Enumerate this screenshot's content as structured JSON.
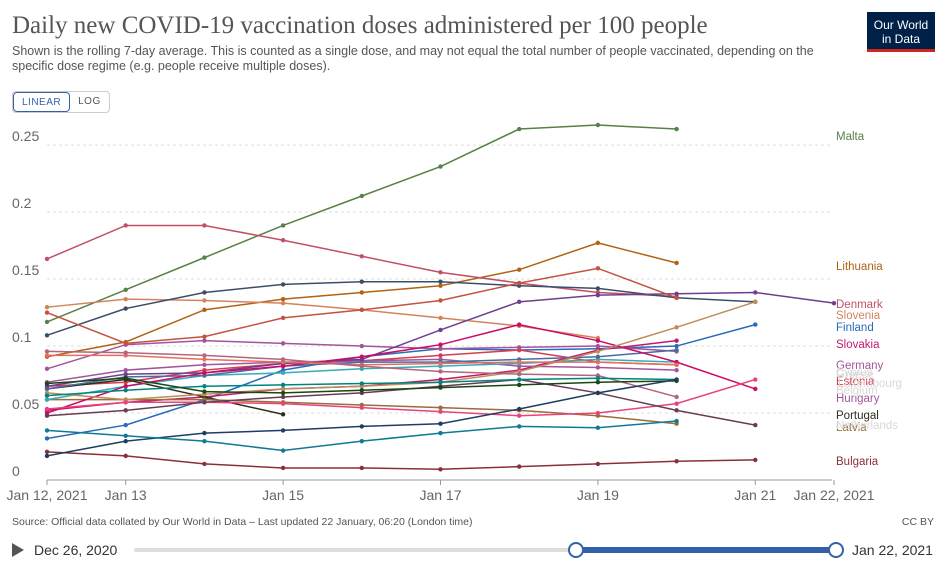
{
  "header": {
    "title": "Daily new COVID-19 vaccination doses administered per 100 people",
    "subtitle": "Shown is the rolling 7-day average. This is counted as a single dose, and may not equal the total number of people vaccinated, depending on the specific dose regime (e.g. people receive multiple doses).",
    "logo_line1": "Our World",
    "logo_line2": "in Data"
  },
  "controls": {
    "linear_label": "LINEAR",
    "log_label": "LOG",
    "active": "LINEAR"
  },
  "footer": {
    "source": "Source: Official data collated by Our World in Data – Last updated 22 January, 06:20 (London time)",
    "license": "CC BY"
  },
  "timeline": {
    "start_label": "Dec 26, 2020",
    "end_label": "Jan 22, 2021"
  },
  "chart_data": {
    "type": "line",
    "x_dates": [
      "2021-01-12",
      "2021-01-13",
      "2021-01-14",
      "2021-01-15",
      "2021-01-16",
      "2021-01-17",
      "2021-01-18",
      "2021-01-19",
      "2021-01-20",
      "2021-01-21",
      "2021-01-22"
    ],
    "x_tick_labels": [
      {
        "date": "2021-01-12",
        "label": "Jan 12, 2021"
      },
      {
        "date": "2021-01-13",
        "label": "Jan 13"
      },
      {
        "date": "2021-01-15",
        "label": "Jan 15"
      },
      {
        "date": "2021-01-17",
        "label": "Jan 17"
      },
      {
        "date": "2021-01-19",
        "label": "Jan 19"
      },
      {
        "date": "2021-01-21",
        "label": "Jan 21"
      },
      {
        "date": "2021-01-22",
        "label": "Jan 22, 2021"
      }
    ],
    "y_ticks": [
      {
        "value": 0,
        "label": "0"
      },
      {
        "value": 0.05,
        "label": "0.05"
      },
      {
        "value": 0.1,
        "label": "0.1"
      },
      {
        "value": 0.15,
        "label": "0.15"
      },
      {
        "value": 0.2,
        "label": "0.2"
      },
      {
        "value": 0.25,
        "label": "0.25"
      }
    ],
    "ylim": [
      0,
      0.265
    ],
    "grid": "horizontal dashed",
    "series": [
      {
        "name": "Malta",
        "color": "#578145",
        "labeled": true,
        "values": [
          0.118,
          0.142,
          0.166,
          0.19,
          0.212,
          0.234,
          0.262,
          0.265,
          0.262,
          null,
          null
        ]
      },
      {
        "name": "Lithuania",
        "color": "#b16214",
        "labeled": true,
        "values": [
          0.092,
          0.103,
          0.127,
          0.135,
          0.14,
          0.145,
          0.157,
          0.177,
          0.162,
          null,
          null
        ]
      },
      {
        "name": "Denmark",
        "color": "#c15065",
        "labeled": true,
        "values": [
          0.165,
          0.19,
          0.19,
          0.179,
          0.167,
          0.155,
          0.147,
          0.14,
          0.137,
          null,
          null
        ]
      },
      {
        "name": "Slovenia",
        "color": "#d2855c",
        "labeled": true,
        "values": [
          0.129,
          0.135,
          0.134,
          0.132,
          0.127,
          0.121,
          0.115,
          0.106,
          null,
          null,
          null
        ]
      },
      {
        "name": "Finland",
        "color": "#286bbb",
        "labeled": true,
        "values": [
          0.031,
          0.041,
          0.06,
          0.082,
          0.092,
          0.098,
          0.097,
          0.098,
          0.1,
          0.116,
          null
        ]
      },
      {
        "name": "Slovakia",
        "color": "#c5186d",
        "labeled": true,
        "values": [
          0.052,
          0.058,
          0.062,
          0.068,
          0.07,
          0.075,
          0.082,
          0.097,
          0.104,
          null,
          null
        ]
      },
      {
        "name": "Germany",
        "color": "#a2559c",
        "labeled": true,
        "values": [
          0.083,
          0.101,
          0.104,
          0.102,
          0.1,
          0.098,
          0.099,
          0.1,
          0.096,
          null,
          null
        ]
      },
      {
        "name": "Estonia",
        "color": "#d73c50",
        "labeled": true,
        "values": [
          0.07,
          0.073,
          0.082,
          0.087,
          0.089,
          0.093,
          0.097,
          0.088,
          0.086,
          null,
          null
        ]
      },
      {
        "name": "Hungary",
        "color": "#a2559c",
        "labeled": true,
        "values": [
          0.073,
          0.082,
          0.086,
          0.088,
          0.089,
          0.09,
          0.085,
          0.084,
          0.082,
          null,
          null
        ]
      },
      {
        "name": "Portugal",
        "color": "#2d2d1e",
        "labeled": true,
        "values": [
          0.068,
          0.075,
          0.062,
          0.049,
          null,
          null,
          null,
          null,
          null,
          null,
          null
        ]
      },
      {
        "name": "Latvia",
        "color": "#996d39",
        "labeled": true,
        "values": [
          0.06,
          0.06,
          0.06,
          0.058,
          0.056,
          0.054,
          0.052,
          0.048,
          0.042,
          null,
          null
        ]
      },
      {
        "name": "Bulgaria",
        "color": "#883039",
        "labeled": true,
        "values": [
          0.021,
          0.018,
          0.012,
          0.009,
          0.009,
          0.008,
          0.01,
          0.012,
          0.014,
          0.015,
          null
        ]
      },
      {
        "name": "",
        "color": "#38aaba",
        "labeled": false,
        "values": [
          0.06,
          0.07,
          0.078,
          0.08,
          0.083,
          0.085,
          0.087,
          0.09,
          0.088,
          null,
          null
        ]
      },
      {
        "name": "",
        "color": "#4c6a9c",
        "labeled": false,
        "values": [
          0.068,
          0.077,
          0.078,
          0.085,
          0.088,
          0.088,
          0.09,
          0.092,
          0.097,
          null,
          null
        ]
      },
      {
        "name": "",
        "color": "#3c4e66",
        "labeled": false,
        "values": [
          0.108,
          0.128,
          0.14,
          0.146,
          0.148,
          0.148,
          0.145,
          0.143,
          0.136,
          0.133,
          null
        ]
      },
      {
        "name": "",
        "color": "#6d3e91",
        "labeled": false,
        "values": [
          0.07,
          0.079,
          0.08,
          0.087,
          0.09,
          0.112,
          0.133,
          0.138,
          0.139,
          0.14,
          0.132
        ]
      },
      {
        "name": "",
        "color": "#cf0a66",
        "labeled": false,
        "values": [
          0.05,
          0.07,
          0.08,
          0.085,
          0.092,
          0.101,
          0.116,
          0.104,
          0.088,
          0.068,
          null
        ]
      },
      {
        "name": "",
        "color": "#bc8e5a",
        "labeled": false,
        "values": [
          0.065,
          0.06,
          0.064,
          0.068,
          0.07,
          0.073,
          0.081,
          0.096,
          0.114,
          0.133,
          null
        ]
      },
      {
        "name": "",
        "color": "#e56e5a",
        "labeled": false,
        "values": [
          0.093,
          0.093,
          0.09,
          0.088,
          0.086,
          0.087,
          0.088,
          0.088,
          0.086,
          null,
          null
        ]
      },
      {
        "name": "",
        "color": "#b1657f",
        "labeled": false,
        "values": [
          0.096,
          0.095,
          0.093,
          0.09,
          0.085,
          0.081,
          0.079,
          0.078,
          0.062,
          null,
          null
        ]
      },
      {
        "name": "",
        "color": "#e6447c",
        "labeled": false,
        "values": [
          0.053,
          0.058,
          0.058,
          0.057,
          0.054,
          0.051,
          0.048,
          0.05,
          0.057,
          0.075,
          null
        ]
      },
      {
        "name": "",
        "color": "#6b3b56",
        "labeled": false,
        "values": [
          0.048,
          0.052,
          0.058,
          0.062,
          0.065,
          0.07,
          0.075,
          0.065,
          0.052,
          0.041,
          null
        ]
      },
      {
        "name": "",
        "color": "#00847e",
        "labeled": false,
        "values": [
          0.063,
          0.067,
          0.07,
          0.071,
          0.072,
          0.073,
          0.075,
          0.076,
          0.075,
          null,
          null
        ]
      },
      {
        "name": "",
        "color": "#18470f",
        "labeled": false,
        "values": [
          0.072,
          0.076,
          0.066,
          0.065,
          0.067,
          0.069,
          0.071,
          0.073,
          0.074,
          null,
          null
        ]
      },
      {
        "name": "",
        "color": "#1d3d63",
        "labeled": false,
        "values": [
          0.018,
          0.029,
          0.035,
          0.037,
          0.04,
          0.042,
          0.053,
          0.065,
          0.075,
          null,
          null
        ]
      },
      {
        "name": "",
        "color": "#0e7a93",
        "labeled": false,
        "values": [
          0.037,
          0.033,
          0.029,
          0.022,
          0.029,
          0.035,
          0.04,
          0.039,
          0.044,
          null,
          null
        ]
      },
      {
        "name": "",
        "color": "#c4523e",
        "labeled": false,
        "values": [
          0.125,
          0.102,
          0.107,
          0.121,
          0.127,
          0.134,
          0.147,
          0.158,
          0.136,
          null,
          null
        ]
      }
    ],
    "faint_labels": [
      "Luxembourg",
      "Greece",
      "Cyprus",
      "Belgium",
      "Netherlands"
    ]
  }
}
